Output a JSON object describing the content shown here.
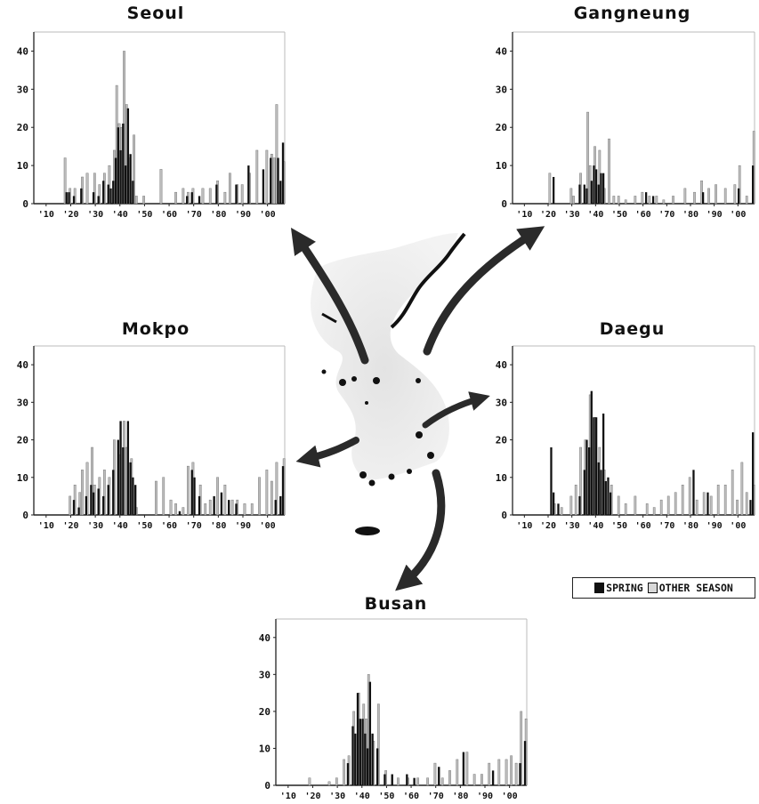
{
  "legend": {
    "spring_label": "SPRING",
    "other_label": "OTHER SEASON",
    "spring_color": "#111111",
    "other_color": "#bdbdbd"
  },
  "chart_data": [
    {
      "type": "bar",
      "title": "Seoul",
      "ylim": [
        0,
        45
      ],
      "yticks": [
        0,
        10,
        20,
        30,
        40
      ],
      "xticks": [
        "'10",
        "'20",
        "'30",
        "'40",
        "'50",
        "'60",
        "'70",
        "'80",
        "'90",
        "'00"
      ],
      "x_start": 1905,
      "x_end": 2007,
      "series": [
        {
          "name": "SPRING",
          "x": [
            1918,
            1919,
            1921,
            1924,
            1929,
            1931,
            1933,
            1935,
            1936,
            1937,
            1938,
            1939,
            1940,
            1941,
            1942,
            1943,
            1944,
            1945,
            1967,
            1969,
            1972,
            1979,
            1987,
            1992,
            1998,
            2001,
            2004,
            2005,
            2006
          ],
          "values": [
            3,
            3,
            2,
            4,
            3,
            2,
            6,
            5,
            4,
            6,
            12,
            20,
            14,
            21,
            10,
            25,
            13,
            6,
            2,
            3,
            2,
            5,
            5,
            10,
            9,
            12,
            12,
            6,
            16
          ]
        },
        {
          "name": "OTHER SEASON",
          "x": [
            1918,
            1920,
            1922,
            1925,
            1927,
            1930,
            1932,
            1934,
            1936,
            1938,
            1939,
            1940,
            1941,
            1942,
            1943,
            1944,
            1946,
            1947,
            1950,
            1957,
            1963,
            1966,
            1968,
            1970,
            1974,
            1977,
            1980,
            1983,
            1985,
            1988,
            1990,
            1993,
            1996,
            2000,
            2002,
            2003,
            2004,
            2007
          ],
          "values": [
            12,
            4,
            4,
            7,
            8,
            8,
            5,
            8,
            10,
            14,
            31,
            21,
            20,
            40,
            26,
            12,
            18,
            2,
            2,
            9,
            3,
            4,
            3,
            4,
            4,
            4,
            6,
            3,
            8,
            5,
            5,
            8,
            14,
            14,
            13,
            12,
            26,
            11
          ]
        }
      ]
    },
    {
      "type": "bar",
      "title": "Gangneung",
      "ylim": [
        0,
        45
      ],
      "yticks": [
        0,
        10,
        20,
        30,
        40
      ],
      "xticks": [
        "'10",
        "'20",
        "'30",
        "'40",
        "'50",
        "'60",
        "'70",
        "'80",
        "'90",
        "'00"
      ],
      "x_start": 1905,
      "x_end": 2007,
      "series": [
        {
          "name": "SPRING",
          "x": [
            1922,
            1933,
            1935,
            1936,
            1938,
            1939,
            1940,
            1941,
            1942,
            1943,
            1961,
            1964,
            1985,
            2000,
            2006
          ],
          "values": [
            7,
            5,
            5,
            4,
            6,
            10,
            9,
            5,
            8,
            8,
            3,
            2,
            3,
            4,
            10
          ]
        },
        {
          "name": "OTHER SEASON",
          "x": [
            1921,
            1930,
            1931,
            1934,
            1937,
            1938,
            1940,
            1942,
            1944,
            1946,
            1948,
            1950,
            1953,
            1957,
            1960,
            1963,
            1966,
            1969,
            1973,
            1978,
            1982,
            1985,
            1988,
            1991,
            1995,
            1999,
            2001,
            2004,
            2007
          ],
          "values": [
            8,
            4,
            2,
            8,
            24,
            10,
            15,
            14,
            4,
            17,
            2,
            2,
            1,
            2,
            3,
            2,
            2,
            1,
            2,
            4,
            3,
            6,
            4,
            5,
            4,
            5,
            10,
            2,
            19
          ]
        }
      ]
    },
    {
      "type": "bar",
      "title": "Mokpo",
      "ylim": [
        0,
        45
      ],
      "yticks": [
        0,
        10,
        20,
        30,
        40
      ],
      "xticks": [
        "'10",
        "'20",
        "'30",
        "'40",
        "'50",
        "'60",
        "'70",
        "'80",
        "'90",
        "'00"
      ],
      "x_start": 1905,
      "x_end": 2007,
      "series": [
        {
          "name": "SPRING",
          "x": [
            1921,
            1923,
            1926,
            1928,
            1929,
            1931,
            1933,
            1935,
            1937,
            1939,
            1940,
            1941,
            1943,
            1944,
            1945,
            1946,
            1964,
            1969,
            1970,
            1972,
            1978,
            1981,
            1984,
            1987,
            2003,
            2005,
            2006
          ],
          "values": [
            4,
            2,
            5,
            8,
            6,
            7,
            5,
            8,
            12,
            20,
            25,
            18,
            25,
            14,
            10,
            8,
            1,
            12,
            10,
            5,
            5,
            6,
            4,
            3,
            4,
            5,
            13
          ]
        },
        {
          "name": "OTHER SEASON",
          "x": [
            1920,
            1922,
            1924,
            1925,
            1927,
            1929,
            1930,
            1932,
            1934,
            1936,
            1938,
            1940,
            1942,
            1943,
            1945,
            1947,
            1955,
            1958,
            1961,
            1963,
            1966,
            1968,
            1970,
            1973,
            1975,
            1977,
            1980,
            1983,
            1986,
            1988,
            1991,
            1994,
            1997,
            2000,
            2002,
            2004,
            2007
          ],
          "values": [
            5,
            8,
            6,
            12,
            14,
            18,
            8,
            10,
            12,
            10,
            20,
            16,
            25,
            18,
            15,
            2,
            9,
            10,
            4,
            3,
            2,
            13,
            14,
            8,
            3,
            4,
            10,
            8,
            4,
            4,
            3,
            3,
            10,
            12,
            9,
            14,
            15
          ]
        }
      ]
    },
    {
      "type": "bar",
      "title": "Daegu",
      "ylim": [
        0,
        45
      ],
      "yticks": [
        0,
        10,
        20,
        30,
        40
      ],
      "xticks": [
        "'10",
        "'20",
        "'30",
        "'40",
        "'50",
        "'60",
        "'70",
        "'80",
        "'90",
        "'00"
      ],
      "x_start": 1905,
      "x_end": 2007,
      "series": [
        {
          "name": "SPRING",
          "x": [
            1921,
            1922,
            1924,
            1933,
            1935,
            1936,
            1937,
            1938,
            1939,
            1940,
            1941,
            1942,
            1943,
            1944,
            1945,
            1946,
            1981,
            1987,
            2005,
            2006
          ],
          "values": [
            18,
            6,
            3,
            5,
            12,
            20,
            18,
            33,
            26,
            26,
            14,
            12,
            27,
            9,
            10,
            6,
            12,
            6,
            4,
            22
          ]
        },
        {
          "name": "OTHER SEASON",
          "x": [
            1923,
            1926,
            1930,
            1932,
            1934,
            1936,
            1938,
            1940,
            1942,
            1944,
            1947,
            1950,
            1953,
            1957,
            1962,
            1965,
            1968,
            1971,
            1974,
            1977,
            1980,
            1983,
            1986,
            1989,
            1992,
            1995,
            1998,
            2000,
            2002,
            2004,
            2007
          ],
          "values": [
            3,
            2,
            5,
            8,
            18,
            20,
            32,
            26,
            18,
            12,
            8,
            5,
            3,
            5,
            3,
            2,
            4,
            5,
            6,
            8,
            10,
            4,
            6,
            5,
            8,
            8,
            12,
            4,
            14,
            6,
            8
          ]
        }
      ]
    },
    {
      "type": "bar",
      "title": "Busan",
      "ylim": [
        0,
        45
      ],
      "yticks": [
        0,
        10,
        20,
        30,
        40
      ],
      "xticks": [
        "'10",
        "'20",
        "'30",
        "'40",
        "'50",
        "'60",
        "'70",
        "'80",
        "'90",
        "'00"
      ],
      "x_start": 1905,
      "x_end": 2007,
      "series": [
        {
          "name": "SPRING",
          "x": [
            1934,
            1936,
            1937,
            1938,
            1939,
            1940,
            1941,
            1942,
            1943,
            1944,
            1946,
            1949,
            1952,
            1958,
            1961,
            1971,
            1981,
            1993,
            2004,
            2006
          ],
          "values": [
            6,
            16,
            14,
            25,
            18,
            18,
            14,
            10,
            28,
            14,
            10,
            3,
            3,
            3,
            2,
            5,
            9,
            4,
            6,
            12
          ]
        },
        {
          "name": "OTHER SEASON",
          "x": [
            1919,
            1927,
            1930,
            1933,
            1935,
            1937,
            1939,
            1941,
            1942,
            1943,
            1945,
            1947,
            1950,
            1955,
            1959,
            1963,
            1967,
            1970,
            1973,
            1976,
            1979,
            1983,
            1986,
            1989,
            1992,
            1996,
            1999,
            2001,
            2003,
            2005,
            2007
          ],
          "values": [
            2,
            1,
            2,
            7,
            8,
            20,
            25,
            22,
            18,
            30,
            12,
            22,
            4,
            2,
            2,
            2,
            2,
            6,
            2,
            4,
            7,
            9,
            3,
            3,
            6,
            7,
            7,
            8,
            6,
            20,
            18
          ]
        }
      ]
    }
  ]
}
